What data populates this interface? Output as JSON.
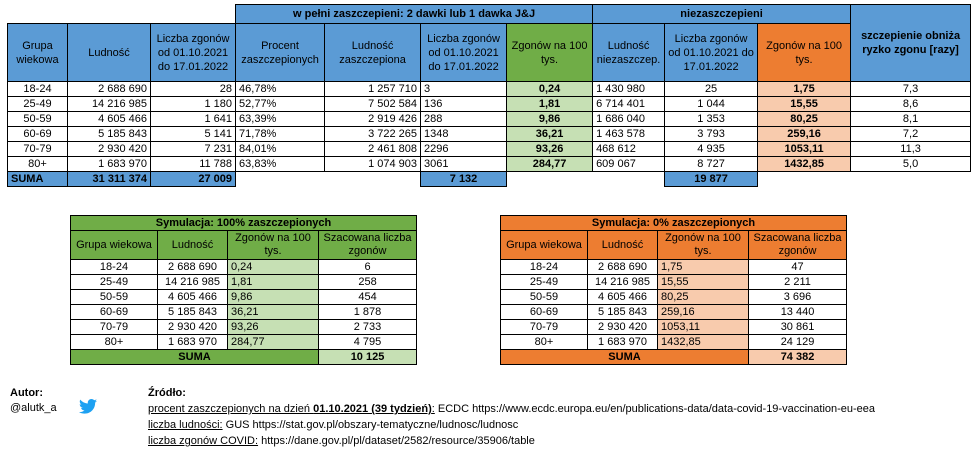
{
  "main": {
    "group_header_vaccinated": "w pełni zaszczepieni: 2 dawki lub 1 dawka J&J",
    "group_header_unvaccinated": "niezaszczepieni",
    "columns": {
      "age": "Grupa wiekowa",
      "population": "Ludność",
      "deaths": "Liczba zgonów od 01.10.2021 do 17.01.2022",
      "pct_vaccinated": "Procent zaszczepionych",
      "pop_vaccinated": "Ludność zaszczepiona",
      "deaths_vaccinated": "Liczba zgonów od 01.10.2021 do 17.01.2022",
      "rate_vaccinated": "Zgonów na 100 tys.",
      "pop_unvaccinated": "Ludność niezaszczep.",
      "deaths_unvaccinated": "Liczba zgonów od 01.10.2021 do 17.01.2022",
      "rate_unvaccinated": "Zgonów na 100 tys.",
      "risk_reduction": "szczepienie obniża ryzko zgonu [razy]"
    },
    "rows": [
      {
        "age": "18-24",
        "pop": "2 688 690",
        "deaths": "28",
        "pct": "46,78%",
        "popv": "1 257 710",
        "dv": "3",
        "rv": "0,24",
        "popu": "1 430 980",
        "du": "25",
        "ru": "1,75",
        "red": "7,3"
      },
      {
        "age": "25-49",
        "pop": "14 216 985",
        "deaths": "1 180",
        "pct": "52,77%",
        "popv": "7 502 584",
        "dv": "136",
        "rv": "1,81",
        "popu": "6 714 401",
        "du": "1 044",
        "ru": "15,55",
        "red": "8,6"
      },
      {
        "age": "50-59",
        "pop": "4 605 466",
        "deaths": "1 641",
        "pct": "63,39%",
        "popv": "2 919 426",
        "dv": "288",
        "rv": "9,86",
        "popu": "1 686 040",
        "du": "1 353",
        "ru": "80,25",
        "red": "8,1"
      },
      {
        "age": "60-69",
        "pop": "5 185 843",
        "deaths": "5 141",
        "pct": "71,78%",
        "popv": "3 722 265",
        "dv": "1348",
        "rv": "36,21",
        "popu": "1 463 578",
        "du": "3 793",
        "ru": "259,16",
        "red": "7,2"
      },
      {
        "age": "70-79",
        "pop": "2 930 420",
        "deaths": "7 231",
        "pct": "84,01%",
        "popv": "2 461 808",
        "dv": "2296",
        "rv": "93,26",
        "popu": "468 612",
        "du": "4 935",
        "ru": "1053,11",
        "red": "11,3"
      },
      {
        "age": "80+",
        "pop": "1 683 970",
        "deaths": "11 788",
        "pct": "63,83%",
        "popv": "1 074 903",
        "dv": "3061",
        "rv": "284,77",
        "popu": "609 067",
        "du": "8 727",
        "ru": "1432,85",
        "red": "5,0"
      }
    ],
    "sum": {
      "label": "SUMA",
      "pop": "31 311 374",
      "deaths": "27 009",
      "dv": "7 132",
      "du": "19 877"
    }
  },
  "sim100": {
    "title": "Symulacja: 100% zaszczepionych",
    "columns": {
      "age": "Grupa wiekowa",
      "pop": "Ludność",
      "rate": "Zgonów na 100 tys.",
      "est": "Szacowana liczba zgonów"
    },
    "rows": [
      {
        "age": "18-24",
        "pop": "2 688 690",
        "rate": "0,24",
        "est": "6"
      },
      {
        "age": "25-49",
        "pop": "14 216 985",
        "rate": "1,81",
        "est": "258"
      },
      {
        "age": "50-59",
        "pop": "4 605 466",
        "rate": "9,86",
        "est": "454"
      },
      {
        "age": "60-69",
        "pop": "5 185 843",
        "rate": "36,21",
        "est": "1 878"
      },
      {
        "age": "70-79",
        "pop": "2 930 420",
        "rate": "93,26",
        "est": "2 733"
      },
      {
        "age": "80+",
        "pop": "1 683 970",
        "rate": "284,77",
        "est": "4 795"
      }
    ],
    "sum_label": "SUMA",
    "sum_value": "10 125"
  },
  "sim0": {
    "title": "Symulacja: 0% zaszczepionych",
    "columns": {
      "age": "Grupa wiekowa",
      "pop": "Ludność",
      "rate": "Zgonów na 100 tys.",
      "est": "Szacowana liczba zgonów"
    },
    "rows": [
      {
        "age": "18-24",
        "pop": "2 688 690",
        "rate": "1,75",
        "est": "47"
      },
      {
        "age": "25-49",
        "pop": "14 216 985",
        "rate": "15,55",
        "est": "2 211"
      },
      {
        "age": "50-59",
        "pop": "4 605 466",
        "rate": "80,25",
        "est": "3 696"
      },
      {
        "age": "60-69",
        "pop": "5 185 843",
        "rate": "259,16",
        "est": "13 440"
      },
      {
        "age": "70-79",
        "pop": "2 930 420",
        "rate": "1053,11",
        "est": "30 861"
      },
      {
        "age": "80+",
        "pop": "1 683 970",
        "rate": "1432,85",
        "est": "24 129"
      }
    ],
    "sum_label": "SUMA",
    "sum_value": "74 382"
  },
  "footer": {
    "author_label": "Autor:",
    "author_handle": "@alutk_a",
    "twitter_icon": "twitter-bird-icon",
    "sources_label": "Źródło:",
    "src1_underlined_a": "procent zaszczepionych na dzień ",
    "src1_bold": "01.10.2021 (39 tydzień)",
    "src1_colon": ":",
    "src1_rest": " ECDC https://www.ecdc.europa.eu/en/publications-data/data-covid-19-vaccination-eu-eea",
    "src2_underlined": "liczba ludności:",
    "src2_rest": " GUS https://stat.gov.pl/obszary-tematyczne/ludnosc/ludnosc",
    "src3_underlined": "liczba zgonów COVID:",
    "src3_rest": " https://dane.gov.pl/pl/dataset/2582/resource/35906/table"
  },
  "colors": {
    "blue": "#5B9BD5",
    "green": "#70AD47",
    "light_green": "#C6E0B4",
    "orange": "#ED7D31",
    "light_orange": "#F8CBAD",
    "twitter": "#1DA1F2"
  }
}
